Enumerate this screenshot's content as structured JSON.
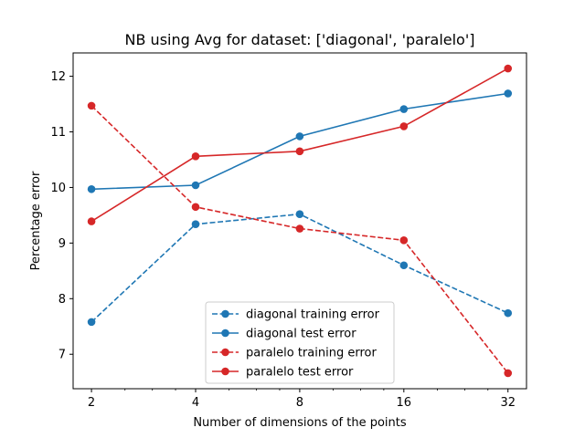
{
  "chart_data": {
    "type": "line",
    "title": "NB using Avg for dataset: ['diagonal', 'paralelo']",
    "xlabel": "Number of dimensions of the points",
    "ylabel": "Percentage error",
    "x_scale": "log2",
    "x": [
      2,
      4,
      8,
      16,
      32
    ],
    "x_tick_labels": [
      "2",
      "4",
      "8",
      "16",
      "32"
    ],
    "xlim": [
      1.77,
      36.2
    ],
    "ylim": [
      6.38,
      12.42
    ],
    "y_ticks": [
      7,
      8,
      9,
      10,
      11,
      12
    ],
    "grid": false,
    "legend_position": "lower center",
    "series": [
      {
        "name": "diagonal training error",
        "color": "#1f77b4",
        "linestyle": "dashed",
        "marker": "circle",
        "values": [
          7.58,
          9.34,
          9.52,
          8.6,
          7.74
        ]
      },
      {
        "name": "diagonal test error",
        "color": "#1f77b4",
        "linestyle": "solid",
        "marker": "circle",
        "values": [
          9.97,
          10.04,
          10.92,
          11.41,
          11.69
        ]
      },
      {
        "name": "paralelo training error",
        "color": "#d62728",
        "linestyle": "dashed",
        "marker": "circle",
        "values": [
          11.47,
          9.65,
          9.26,
          9.05,
          6.66
        ]
      },
      {
        "name": "paralelo test error",
        "color": "#d62728",
        "linestyle": "solid",
        "marker": "circle",
        "values": [
          9.39,
          10.56,
          10.65,
          11.1,
          12.14
        ]
      }
    ]
  }
}
